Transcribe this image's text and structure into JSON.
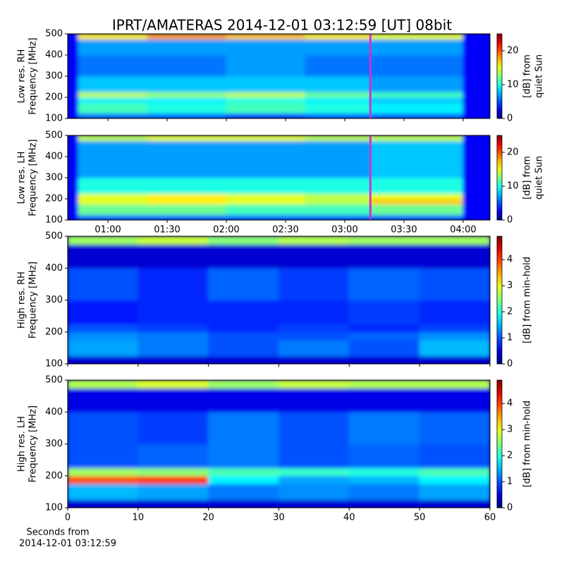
{
  "chart_data": [
    {
      "type": "heatmap",
      "title": "IPRT/AMATERAS 2014-12-01 03:12:59 [UT]   08bit",
      "ylabel": [
        "Low res. RH",
        "Frequency [MHz]"
      ],
      "xlim": [
        39.6,
        253.6
      ],
      "xticks": [
        60,
        90,
        120,
        150,
        180,
        210,
        240
      ],
      "show_xtick_labels": false,
      "ylim": [
        100,
        500
      ],
      "yticks": [
        100,
        200,
        300,
        400,
        500
      ],
      "x_bins": [
        39.6,
        45,
        80,
        120,
        160,
        193,
        240,
        253.6
      ],
      "y_bins": [
        100,
        125,
        175,
        200,
        225,
        300,
        400,
        475,
        500
      ],
      "values": [
        [
          3,
          6,
          6,
          5,
          6,
          6,
          3
        ],
        [
          3,
          11,
          10,
          11,
          10,
          9,
          3
        ],
        [
          3,
          9,
          9,
          10,
          9,
          8,
          3
        ],
        [
          3,
          14,
          13,
          14,
          12,
          11,
          3
        ],
        [
          3,
          8,
          8,
          8,
          8,
          7,
          3
        ],
        [
          3,
          6,
          6,
          7,
          6,
          6,
          3
        ],
        [
          3,
          7,
          7,
          7,
          7,
          7,
          3
        ],
        [
          3,
          16,
          18,
          17,
          16,
          15,
          3
        ]
      ],
      "marker_x": 192.98,
      "marker_color": "#cc33cc",
      "colorbar": {
        "label": [
          "[dB] from",
          "quiet Sun"
        ],
        "lim": [
          0,
          25
        ],
        "ticks": [
          0,
          10,
          20
        ]
      }
    },
    {
      "type": "heatmap",
      "ylabel": [
        "Low res. LH",
        "Frequency [MHz]"
      ],
      "xlim": [
        39.6,
        253.6
      ],
      "xticks": [
        {
          "value": 60,
          "label": "01:00"
        },
        {
          "value": 90,
          "label": "01:30"
        },
        {
          "value": 120,
          "label": "02:00"
        },
        {
          "value": 150,
          "label": "02:30"
        },
        {
          "value": 180,
          "label": "03:00"
        },
        {
          "value": 210,
          "label": "03:30"
        },
        {
          "value": 240,
          "label": "04:00"
        }
      ],
      "show_xtick_labels": true,
      "ylim": [
        100,
        500
      ],
      "yticks": [
        100,
        200,
        300,
        400,
        500
      ],
      "x_bins": [
        39.6,
        45,
        80,
        120,
        160,
        193,
        240,
        253.6
      ],
      "y_bins": [
        100,
        125,
        175,
        200,
        225,
        300,
        400,
        475,
        500
      ],
      "values": [
        [
          3,
          6,
          6,
          6,
          6,
          6,
          3
        ],
        [
          3,
          12,
          12,
          11,
          11,
          12,
          3
        ],
        [
          3,
          15,
          16,
          15,
          14,
          17,
          3
        ],
        [
          3,
          15,
          16,
          15,
          14,
          15,
          3
        ],
        [
          3,
          10,
          10,
          10,
          10,
          10,
          3
        ],
        [
          3,
          7,
          7,
          7,
          7,
          8,
          3
        ],
        [
          3,
          7,
          7,
          7,
          7,
          8,
          3
        ],
        [
          3,
          14,
          15,
          15,
          14,
          14,
          3
        ]
      ],
      "marker_x": 192.98,
      "marker_color": "#cc33cc",
      "colorbar": {
        "label": [
          "[dB] from",
          "quiet Sun"
        ],
        "lim": [
          0,
          25
        ],
        "ticks": [
          0,
          10,
          20
        ]
      }
    },
    {
      "type": "heatmap",
      "ylabel": [
        "High res. RH",
        "Frequency [MHz]"
      ],
      "xlim": [
        0,
        60
      ],
      "xticks": [
        0,
        10,
        20,
        30,
        40,
        50,
        60
      ],
      "show_xtick_labels": false,
      "ylim": [
        100,
        500
      ],
      "yticks": [
        100,
        200,
        300,
        400,
        500
      ],
      "x_bins": [
        0,
        10,
        20,
        30,
        40,
        50,
        60
      ],
      "y_bins": [
        100,
        125,
        175,
        200,
        225,
        300,
        400,
        475,
        500
      ],
      "values": [
        [
          0.4,
          0.4,
          0.4,
          0.4,
          0.4,
          0.4
        ],
        [
          1.4,
          1.2,
          1.0,
          1.2,
          1.0,
          1.5
        ],
        [
          1.3,
          1.2,
          1.0,
          1.0,
          1.1,
          1.3
        ],
        [
          1.0,
          0.9,
          0.8,
          0.9,
          0.8,
          0.9
        ],
        [
          0.7,
          0.8,
          0.8,
          0.8,
          0.9,
          0.8
        ],
        [
          1.0,
          0.8,
          1.1,
          0.9,
          1.1,
          1.0
        ],
        [
          0.4,
          0.4,
          0.4,
          0.4,
          0.4,
          0.4
        ],
        [
          2.6,
          2.8,
          2.5,
          2.7,
          2.6,
          2.6
        ]
      ],
      "colorbar": {
        "label": [
          "[dB] from min-hold"
        ],
        "lim": [
          0,
          4.9
        ],
        "ticks": [
          0,
          1,
          2,
          3,
          4
        ]
      }
    },
    {
      "type": "heatmap",
      "ylabel": [
        "High res. LH",
        "Frequency [MHz]"
      ],
      "xlabel": [
        "Seconds from",
        "2014-12-01 03:12:59"
      ],
      "xlim": [
        0,
        60
      ],
      "xticks": [
        0,
        10,
        20,
        30,
        40,
        50,
        60
      ],
      "show_xtick_labels": true,
      "ylim": [
        100,
        500
      ],
      "yticks": [
        100,
        200,
        300,
        400,
        500
      ],
      "x_bins": [
        0,
        10,
        20,
        30,
        40,
        50,
        60
      ],
      "y_bins": [
        100,
        125,
        175,
        200,
        225,
        300,
        400,
        475,
        500
      ],
      "values": [
        [
          0.4,
          0.4,
          0.4,
          0.4,
          0.4,
          0.4
        ],
        [
          1.5,
          1.4,
          1.2,
          1.3,
          1.2,
          1.4
        ],
        [
          3.9,
          4.0,
          1.8,
          1.4,
          1.5,
          1.8
        ],
        [
          2.6,
          2.5,
          2.2,
          2.1,
          2.0,
          2.2
        ],
        [
          1.0,
          1.1,
          1.2,
          1.0,
          1.1,
          1.0
        ],
        [
          1.0,
          0.9,
          1.2,
          1.0,
          1.2,
          1.1
        ],
        [
          0.5,
          0.5,
          0.5,
          0.5,
          0.5,
          0.5
        ],
        [
          2.7,
          2.9,
          2.6,
          2.8,
          2.7,
          2.7
        ]
      ],
      "colorbar": {
        "label": [
          "[dB] from min-hold"
        ],
        "lim": [
          0,
          4.9
        ],
        "ticks": [
          0,
          1,
          2,
          3,
          4
        ]
      }
    }
  ]
}
